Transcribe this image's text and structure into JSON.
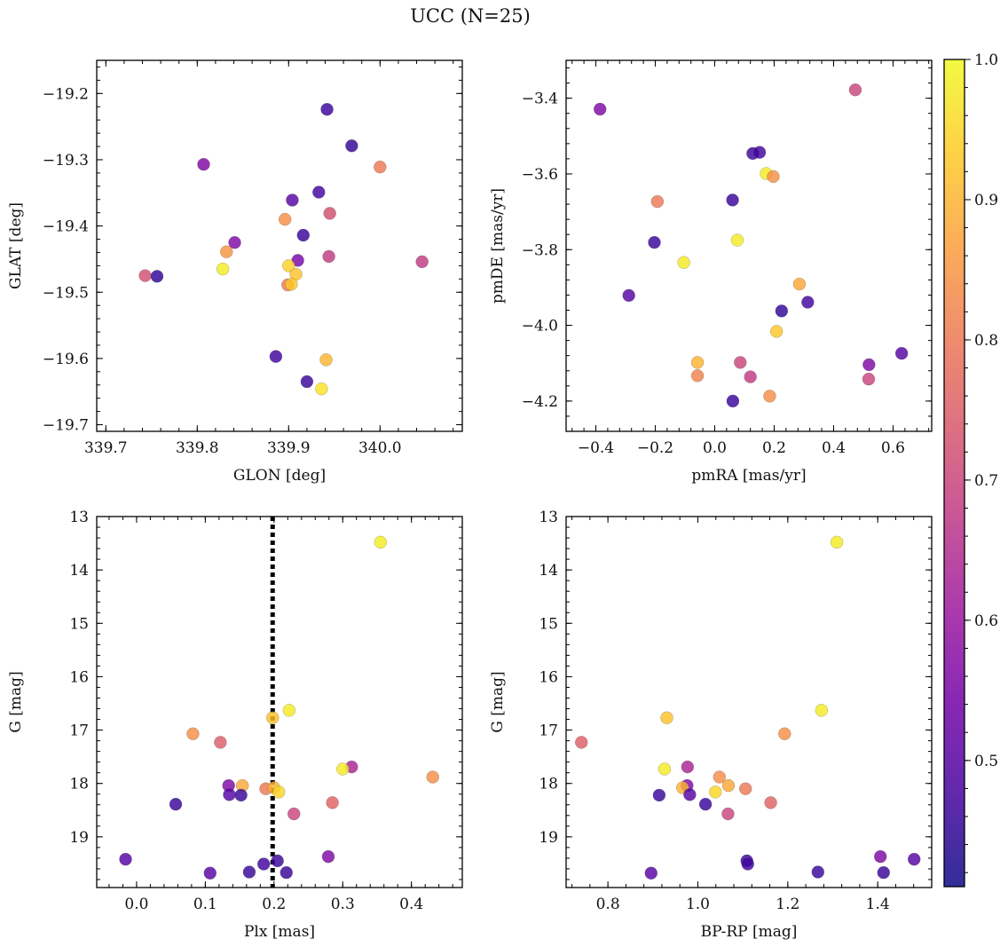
{
  "figure": {
    "title": "UCC (N=25)"
  },
  "colorbar": {
    "min": 0.41,
    "max": 1.0,
    "ticks": [
      "0.5",
      "0.6",
      "0.7",
      "0.8",
      "0.9",
      "1.0"
    ],
    "colormap": "plasma",
    "stops": [
      "#0d0887",
      "#46039f",
      "#7201a8",
      "#9c179e",
      "#bd3786",
      "#d8576b",
      "#ed7953",
      "#fb9f3a",
      "#fdca26",
      "#f0f921"
    ]
  },
  "chart_data": [
    {
      "id": "glon-glat",
      "type": "scatter",
      "xlabel": "GLON [deg]",
      "ylabel": "GLAT [deg]",
      "xlim": [
        339.69,
        340.09
      ],
      "ylim": [
        -19.71,
        -19.15
      ],
      "yinverted": false,
      "xticks": [
        339.7,
        339.8,
        339.9,
        340.0
      ],
      "xticklabels": [
        "339.7",
        "339.8",
        "339.9",
        "340.0"
      ],
      "yticks": [
        -19.2,
        -19.3,
        -19.4,
        -19.5,
        -19.6,
        -19.7
      ],
      "yticklabels": [
        "−19.2",
        "−19.3",
        "−19.4",
        "−19.5",
        "−19.6",
        "−19.7"
      ],
      "points": [
        {
          "x": 339.942,
          "y": -19.224,
          "c": 0.46
        },
        {
          "x": 339.969,
          "y": -19.279,
          "c": 0.45
        },
        {
          "x": 339.807,
          "y": -19.307,
          "c": 0.56
        },
        {
          "x": 340.0,
          "y": -19.311,
          "c": 0.8
        },
        {
          "x": 339.933,
          "y": -19.349,
          "c": 0.47
        },
        {
          "x": 339.904,
          "y": -19.361,
          "c": 0.5
        },
        {
          "x": 339.945,
          "y": -19.381,
          "c": 0.72
        },
        {
          "x": 339.896,
          "y": -19.39,
          "c": 0.84
        },
        {
          "x": 339.916,
          "y": -19.414,
          "c": 0.46
        },
        {
          "x": 339.841,
          "y": -19.425,
          "c": 0.56
        },
        {
          "x": 339.832,
          "y": -19.439,
          "c": 0.85
        },
        {
          "x": 339.944,
          "y": -19.446,
          "c": 0.68
        },
        {
          "x": 339.91,
          "y": -19.452,
          "c": 0.55
        },
        {
          "x": 340.046,
          "y": -19.454,
          "c": 0.68
        },
        {
          "x": 339.9,
          "y": -19.46,
          "c": 0.94
        },
        {
          "x": 339.828,
          "y": -19.465,
          "c": 0.98
        },
        {
          "x": 339.908,
          "y": -19.473,
          "c": 0.92
        },
        {
          "x": 339.743,
          "y": -19.475,
          "c": 0.72
        },
        {
          "x": 339.756,
          "y": -19.476,
          "c": 0.45
        },
        {
          "x": 339.899,
          "y": -19.489,
          "c": 0.8
        },
        {
          "x": 339.903,
          "y": -19.488,
          "c": 0.93
        },
        {
          "x": 339.886,
          "y": -19.597,
          "c": 0.47
        },
        {
          "x": 339.941,
          "y": -19.602,
          "c": 0.9
        },
        {
          "x": 339.92,
          "y": -19.635,
          "c": 0.46
        },
        {
          "x": 339.936,
          "y": -19.646,
          "c": 0.97
        }
      ]
    },
    {
      "id": "pmra-pmde",
      "type": "scatter",
      "xlabel": "pmRA [mas/yr]",
      "ylabel": "pmDE [mas/yr]",
      "xlim": [
        -0.5,
        0.73
      ],
      "ylim": [
        -4.28,
        -3.3
      ],
      "yinverted": false,
      "xticks": [
        -0.4,
        -0.2,
        0.0,
        0.2,
        0.4,
        0.6
      ],
      "xticklabels": [
        "−0.4",
        "−0.2",
        "0.0",
        "0.2",
        "0.4",
        "0.6"
      ],
      "yticks": [
        -3.4,
        -3.6,
        -3.8,
        -4.0,
        -4.2
      ],
      "yticklabels": [
        "−3.4",
        "−3.6",
        "−3.8",
        "−4.0",
        "−4.2"
      ],
      "points": [
        {
          "x": 0.473,
          "y": -3.378,
          "c": 0.7
        },
        {
          "x": -0.386,
          "y": -3.429,
          "c": 0.56
        },
        {
          "x": 0.128,
          "y": -3.546,
          "c": 0.46
        },
        {
          "x": 0.151,
          "y": -3.543,
          "c": 0.47
        },
        {
          "x": 0.173,
          "y": -3.599,
          "c": 0.98
        },
        {
          "x": 0.197,
          "y": -3.607,
          "c": 0.84
        },
        {
          "x": -0.193,
          "y": -3.673,
          "c": 0.8
        },
        {
          "x": 0.06,
          "y": -3.669,
          "c": 0.46
        },
        {
          "x": 0.076,
          "y": -3.775,
          "c": 0.98
        },
        {
          "x": -0.203,
          "y": -3.781,
          "c": 0.46
        },
        {
          "x": -0.104,
          "y": -3.834,
          "c": 0.98
        },
        {
          "x": 0.285,
          "y": -3.891,
          "c": 0.88
        },
        {
          "x": -0.289,
          "y": -3.921,
          "c": 0.5
        },
        {
          "x": 0.313,
          "y": -3.939,
          "c": 0.47
        },
        {
          "x": 0.225,
          "y": -3.962,
          "c": 0.45
        },
        {
          "x": 0.208,
          "y": -4.016,
          "c": 0.93
        },
        {
          "x": 0.629,
          "y": -4.074,
          "c": 0.5
        },
        {
          "x": -0.058,
          "y": -4.098,
          "c": 0.9
        },
        {
          "x": 0.086,
          "y": -4.098,
          "c": 0.7
        },
        {
          "x": 0.519,
          "y": -4.104,
          "c": 0.56
        },
        {
          "x": -0.058,
          "y": -4.133,
          "c": 0.82
        },
        {
          "x": 0.12,
          "y": -4.136,
          "c": 0.68
        },
        {
          "x": 0.518,
          "y": -4.142,
          "c": 0.7
        },
        {
          "x": 0.185,
          "y": -4.187,
          "c": 0.84
        },
        {
          "x": 0.061,
          "y": -4.2,
          "c": 0.46
        }
      ]
    },
    {
      "id": "plx-g",
      "type": "scatter",
      "xlabel": "Plx [mas]",
      "ylabel": "G [mag]",
      "xlim": [
        -0.058,
        0.474
      ],
      "ylim": [
        13.0,
        19.95
      ],
      "yinverted": true,
      "vline": {
        "x": 0.198,
        "style": "dotted"
      },
      "xticks": [
        0.0,
        0.1,
        0.2,
        0.3,
        0.4
      ],
      "xticklabels": [
        "0.0",
        "0.1",
        "0.2",
        "0.3",
        "0.4"
      ],
      "yticks": [
        13,
        14,
        15,
        16,
        17,
        18,
        19
      ],
      "yticklabels": [
        "13",
        "14",
        "15",
        "16",
        "17",
        "18",
        "19"
      ],
      "points": [
        {
          "x": 0.355,
          "y": 13.48,
          "c": 0.98
        },
        {
          "x": 0.222,
          "y": 16.63,
          "c": 0.98
        },
        {
          "x": 0.198,
          "y": 16.77,
          "c": 0.92
        },
        {
          "x": 0.082,
          "y": 17.07,
          "c": 0.84
        },
        {
          "x": 0.122,
          "y": 17.23,
          "c": 0.75
        },
        {
          "x": 0.313,
          "y": 17.69,
          "c": 0.63
        },
        {
          "x": 0.3,
          "y": 17.73,
          "c": 0.98
        },
        {
          "x": 0.431,
          "y": 17.88,
          "c": 0.84
        },
        {
          "x": 0.134,
          "y": 18.04,
          "c": 0.56
        },
        {
          "x": 0.154,
          "y": 18.04,
          "c": 0.88
        },
        {
          "x": 0.188,
          "y": 18.1,
          "c": 0.8
        },
        {
          "x": 0.2,
          "y": 18.08,
          "c": 0.9
        },
        {
          "x": 0.207,
          "y": 18.16,
          "c": 0.95
        },
        {
          "x": 0.135,
          "y": 18.21,
          "c": 0.5
        },
        {
          "x": 0.152,
          "y": 18.22,
          "c": 0.46
        },
        {
          "x": 0.285,
          "y": 18.36,
          "c": 0.76
        },
        {
          "x": 0.057,
          "y": 18.39,
          "c": 0.46
        },
        {
          "x": 0.229,
          "y": 18.57,
          "c": 0.7
        },
        {
          "x": 0.279,
          "y": 19.37,
          "c": 0.56
        },
        {
          "x": -0.016,
          "y": 19.42,
          "c": 0.5
        },
        {
          "x": 0.205,
          "y": 19.45,
          "c": 0.46
        },
        {
          "x": 0.185,
          "y": 19.51,
          "c": 0.47
        },
        {
          "x": 0.107,
          "y": 19.68,
          "c": 0.5
        },
        {
          "x": 0.164,
          "y": 19.66,
          "c": 0.46
        },
        {
          "x": 0.218,
          "y": 19.67,
          "c": 0.46
        }
      ]
    },
    {
      "id": "bprp-g",
      "type": "scatter",
      "xlabel": "BP-RP [mag]",
      "ylabel": "G [mag]",
      "xlim": [
        0.707,
        1.52
      ],
      "ylim": [
        13.0,
        19.95
      ],
      "yinverted": true,
      "xticks": [
        0.8,
        1.0,
        1.2,
        1.4
      ],
      "xticklabels": [
        "0.8",
        "1.0",
        "1.2",
        "1.4"
      ],
      "yticks": [
        13,
        14,
        15,
        16,
        17,
        18,
        19
      ],
      "yticklabels": [
        "13",
        "14",
        "15",
        "16",
        "17",
        "18",
        "19"
      ],
      "points": [
        {
          "x": 1.309,
          "y": 13.48,
          "c": 0.98
        },
        {
          "x": 1.275,
          "y": 16.63,
          "c": 0.98
        },
        {
          "x": 0.931,
          "y": 16.77,
          "c": 0.92
        },
        {
          "x": 1.193,
          "y": 17.07,
          "c": 0.84
        },
        {
          "x": 0.741,
          "y": 17.23,
          "c": 0.75
        },
        {
          "x": 0.977,
          "y": 17.69,
          "c": 0.63
        },
        {
          "x": 0.926,
          "y": 17.73,
          "c": 0.98
        },
        {
          "x": 1.048,
          "y": 17.88,
          "c": 0.84
        },
        {
          "x": 0.976,
          "y": 18.04,
          "c": 0.56
        },
        {
          "x": 1.068,
          "y": 18.04,
          "c": 0.88
        },
        {
          "x": 1.106,
          "y": 18.1,
          "c": 0.8
        },
        {
          "x": 0.966,
          "y": 18.08,
          "c": 0.9
        },
        {
          "x": 1.039,
          "y": 18.16,
          "c": 0.95
        },
        {
          "x": 0.982,
          "y": 18.21,
          "c": 0.5
        },
        {
          "x": 0.914,
          "y": 18.22,
          "c": 0.46
        },
        {
          "x": 1.162,
          "y": 18.36,
          "c": 0.76
        },
        {
          "x": 1.017,
          "y": 18.39,
          "c": 0.46
        },
        {
          "x": 1.067,
          "y": 18.57,
          "c": 0.7
        },
        {
          "x": 1.406,
          "y": 19.37,
          "c": 0.56
        },
        {
          "x": 1.481,
          "y": 19.42,
          "c": 0.5
        },
        {
          "x": 1.109,
          "y": 19.45,
          "c": 0.46
        },
        {
          "x": 1.111,
          "y": 19.51,
          "c": 0.47
        },
        {
          "x": 0.896,
          "y": 19.68,
          "c": 0.5
        },
        {
          "x": 1.267,
          "y": 19.66,
          "c": 0.46
        },
        {
          "x": 1.413,
          "y": 19.67,
          "c": 0.46
        }
      ]
    }
  ]
}
